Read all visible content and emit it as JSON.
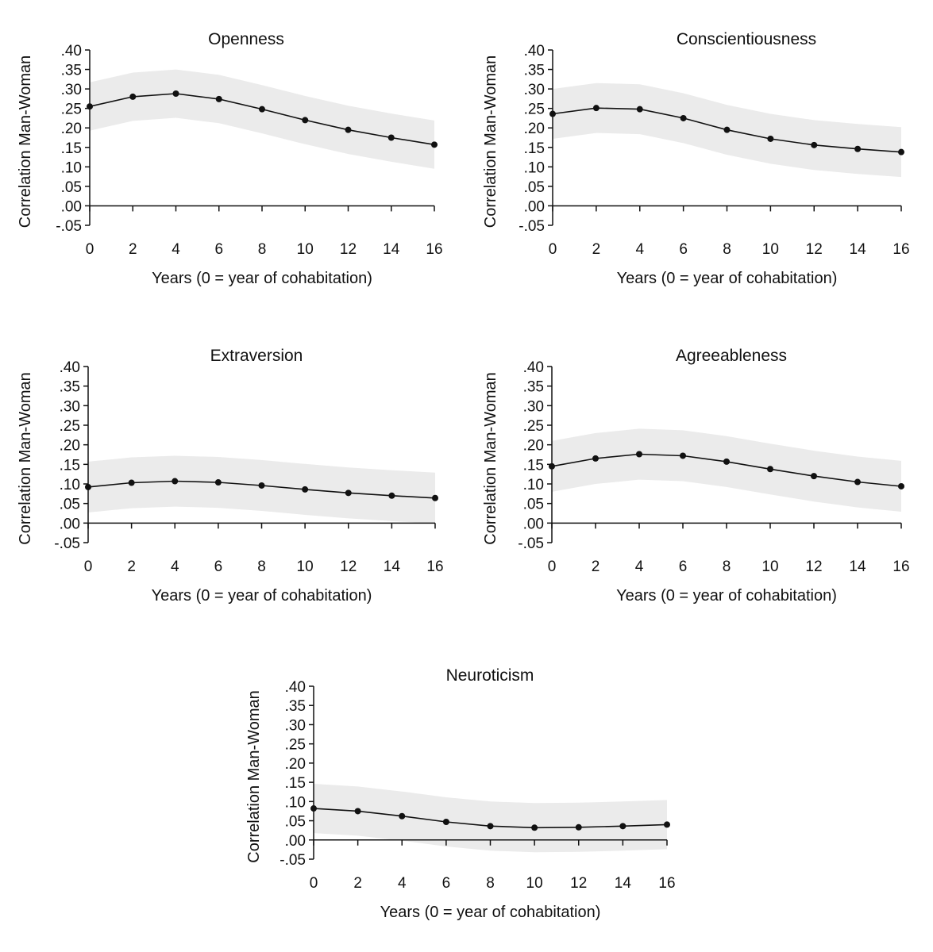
{
  "chart_data": [
    {
      "type": "line",
      "title": "Openness",
      "xlabel": "Years (0 = year of cohabitation)",
      "ylabel": "Correlation Man-Woman",
      "x": [
        0,
        2,
        4,
        6,
        8,
        10,
        12,
        14,
        16
      ],
      "series": [
        {
          "name": "Correlation",
          "values": [
            0.255,
            0.28,
            0.288,
            0.274,
            0.248,
            0.22,
            0.195,
            0.175,
            0.157
          ],
          "ci_lower": [
            0.193,
            0.218,
            0.226,
            0.212,
            0.186,
            0.158,
            0.133,
            0.113,
            0.095
          ],
          "ci_upper": [
            0.317,
            0.342,
            0.35,
            0.336,
            0.31,
            0.282,
            0.257,
            0.237,
            0.219
          ]
        }
      ],
      "xticks": [
        "0",
        "2",
        "4",
        "6",
        "8",
        "10",
        "12",
        "14",
        "16"
      ],
      "yticks": [
        ".40",
        ".35",
        ".30",
        ".25",
        ".20",
        ".15",
        ".10",
        ".05",
        ".00",
        "-.05"
      ],
      "ylim": [
        -0.05,
        0.4
      ],
      "xlim": [
        0,
        16
      ],
      "grid": false,
      "legend": "none"
    },
    {
      "type": "line",
      "title": "Conscientiousness",
      "xlabel": "Years (0 = year of cohabitation)",
      "ylabel": "Correlation Man-Woman",
      "x": [
        0,
        2,
        4,
        6,
        8,
        10,
        12,
        14,
        16
      ],
      "series": [
        {
          "name": "Correlation",
          "values": [
            0.236,
            0.251,
            0.248,
            0.225,
            0.195,
            0.172,
            0.156,
            0.146,
            0.138
          ],
          "ci_lower": [
            0.172,
            0.187,
            0.184,
            0.161,
            0.131,
            0.108,
            0.092,
            0.082,
            0.074
          ],
          "ci_upper": [
            0.3,
            0.315,
            0.312,
            0.289,
            0.259,
            0.236,
            0.22,
            0.21,
            0.202
          ]
        }
      ],
      "xticks": [
        "0",
        "2",
        "4",
        "6",
        "8",
        "10",
        "12",
        "14",
        "16"
      ],
      "yticks": [
        ".40",
        ".35",
        ".30",
        ".25",
        ".20",
        ".15",
        ".10",
        ".05",
        ".00",
        "-.05"
      ],
      "ylim": [
        -0.05,
        0.4
      ],
      "xlim": [
        0,
        16
      ],
      "grid": false,
      "legend": "none"
    },
    {
      "type": "line",
      "title": "Extraversion",
      "xlabel": "Years (0 = year of cohabitation)",
      "ylabel": "Correlation Man-Woman",
      "x": [
        0,
        2,
        4,
        6,
        8,
        10,
        12,
        14,
        16
      ],
      "series": [
        {
          "name": "Correlation",
          "values": [
            0.092,
            0.103,
            0.107,
            0.104,
            0.096,
            0.086,
            0.077,
            0.07,
            0.064
          ],
          "ci_lower": [
            0.027,
            0.038,
            0.042,
            0.039,
            0.031,
            0.021,
            0.012,
            0.005,
            -0.001
          ],
          "ci_upper": [
            0.157,
            0.168,
            0.172,
            0.169,
            0.161,
            0.151,
            0.142,
            0.135,
            0.129
          ]
        }
      ],
      "xticks": [
        "0",
        "2",
        "4",
        "6",
        "8",
        "10",
        "12",
        "14",
        "16"
      ],
      "yticks": [
        ".40",
        ".35",
        ".30",
        ".25",
        ".20",
        ".15",
        ".10",
        ".05",
        ".00",
        "-.05"
      ],
      "ylim": [
        -0.05,
        0.4
      ],
      "xlim": [
        0,
        16
      ],
      "grid": false,
      "legend": "none"
    },
    {
      "type": "line",
      "title": "Agreeableness",
      "xlabel": "Years (0 = year of cohabitation)",
      "ylabel": "Correlation Man-Woman",
      "x": [
        0,
        2,
        4,
        6,
        8,
        10,
        12,
        14,
        16
      ],
      "series": [
        {
          "name": "Correlation",
          "values": [
            0.145,
            0.165,
            0.176,
            0.172,
            0.157,
            0.138,
            0.12,
            0.105,
            0.094
          ],
          "ci_lower": [
            0.08,
            0.1,
            0.111,
            0.107,
            0.092,
            0.073,
            0.055,
            0.04,
            0.029
          ],
          "ci_upper": [
            0.21,
            0.23,
            0.241,
            0.237,
            0.222,
            0.203,
            0.185,
            0.17,
            0.159
          ]
        }
      ],
      "xticks": [
        "0",
        "2",
        "4",
        "6",
        "8",
        "10",
        "12",
        "14",
        "16"
      ],
      "yticks": [
        ".40",
        ".35",
        ".30",
        ".25",
        ".20",
        ".15",
        ".10",
        ".05",
        ".00",
        "-.05"
      ],
      "ylim": [
        -0.05,
        0.4
      ],
      "xlim": [
        0,
        16
      ],
      "grid": false,
      "legend": "none"
    },
    {
      "type": "line",
      "title": "Neuroticism",
      "xlabel": "Years (0 = year of cohabitation)",
      "ylabel": "Correlation Man-Woman",
      "x": [
        0,
        2,
        4,
        6,
        8,
        10,
        12,
        14,
        16
      ],
      "series": [
        {
          "name": "Correlation",
          "values": [
            0.082,
            0.075,
            0.062,
            0.047,
            0.036,
            0.032,
            0.033,
            0.036,
            0.04
          ],
          "ci_lower": [
            0.018,
            0.011,
            -0.002,
            -0.017,
            -0.028,
            -0.032,
            -0.031,
            -0.028,
            -0.024
          ],
          "ci_upper": [
            0.146,
            0.139,
            0.126,
            0.111,
            0.1,
            0.096,
            0.097,
            0.1,
            0.104
          ]
        }
      ],
      "xticks": [
        "0",
        "2",
        "4",
        "6",
        "8",
        "10",
        "12",
        "14",
        "16"
      ],
      "yticks": [
        ".40",
        ".35",
        ".30",
        ".25",
        ".20",
        ".15",
        ".10",
        ".05",
        ".00",
        "-.05"
      ],
      "ylim": [
        -0.05,
        0.4
      ],
      "xlim": [
        0,
        16
      ],
      "grid": false,
      "legend": "none"
    }
  ],
  "colors": {
    "line": "#111111",
    "band": "#ebebeb",
    "axis": "#111111",
    "background": "#ffffff"
  }
}
